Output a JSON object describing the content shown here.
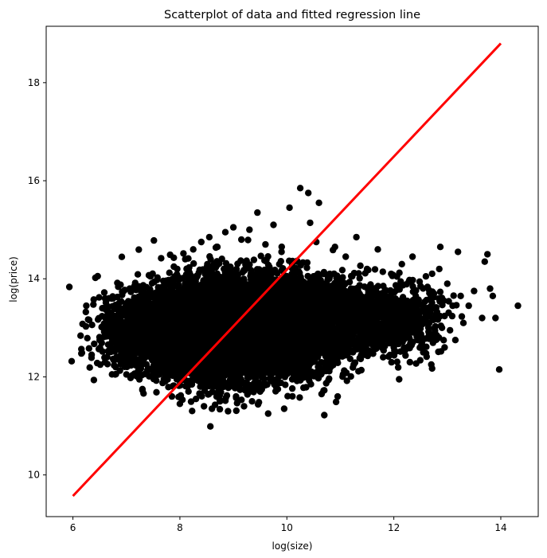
{
  "chart_data": {
    "type": "scatter",
    "title": "Scatterplot of data and fitted regression line",
    "xlabel": "log(size)",
    "ylabel": "log(price)",
    "xlim": [
      5.5,
      14.7
    ],
    "ylim": [
      9.15,
      19.15
    ],
    "grid": false,
    "legend": "none",
    "x_ticks": [
      6,
      8,
      10,
      12,
      14
    ],
    "y_ticks": [
      10,
      12,
      14,
      16,
      18
    ],
    "x_tick_labels": [
      "6",
      "8",
      "10",
      "12",
      "14"
    ],
    "y_tick_labels": [
      "10",
      "12",
      "14",
      "16",
      "18"
    ],
    "colors": {
      "points": "#000000",
      "regression_line": "#ff0000"
    },
    "series": [
      {
        "kind": "points",
        "points": [
          [
            6.25,
            13.45
          ],
          [
            6.35,
            12.45
          ],
          [
            6.42,
            14.02
          ],
          [
            6.5,
            12.75
          ],
          [
            6.55,
            13.4
          ],
          [
            6.6,
            12.3
          ],
          [
            6.65,
            13.15
          ],
          [
            6.7,
            12.9
          ],
          [
            6.75,
            13.6
          ],
          [
            6.8,
            12.2
          ],
          [
            6.85,
            13.35
          ],
          [
            6.9,
            12.65
          ],
          [
            6.95,
            13.75
          ],
          [
            7.0,
            12.05
          ],
          [
            7.05,
            13.2
          ],
          [
            7.1,
            12.55
          ],
          [
            7.15,
            13.85
          ],
          [
            7.2,
            12.35
          ],
          [
            7.25,
            13.05
          ],
          [
            7.3,
            11.75
          ],
          [
            7.35,
            13.65
          ],
          [
            7.4,
            12.85
          ],
          [
            7.45,
            14.05
          ],
          [
            7.5,
            12.15
          ],
          [
            7.6,
            13.4
          ],
          [
            7.65,
            14.42
          ],
          [
            7.7,
            11.95
          ],
          [
            7.75,
            12.7
          ],
          [
            7.8,
            13.95
          ],
          [
            7.85,
            11.6
          ],
          [
            7.9,
            13.25
          ],
          [
            7.95,
            14.2
          ],
          [
            8.0,
            11.45
          ],
          [
            8.05,
            12.5
          ],
          [
            8.1,
            14.4
          ],
          [
            8.15,
            11.85
          ],
          [
            8.2,
            13.55
          ],
          [
            8.25,
            14.6
          ],
          [
            8.3,
            11.55
          ],
          [
            8.35,
            12.95
          ],
          [
            8.4,
            14.75
          ],
          [
            8.45,
            11.4
          ],
          [
            8.5,
            13.15
          ],
          [
            8.55,
            14.85
          ],
          [
            8.6,
            11.35
          ],
          [
            8.65,
            12.4
          ],
          [
            8.7,
            14.65
          ],
          [
            8.75,
            11.5
          ],
          [
            8.8,
            13.85
          ],
          [
            8.85,
            14.95
          ],
          [
            8.9,
            11.3
          ],
          [
            8.95,
            12.2
          ],
          [
            9.0,
            15.05
          ],
          [
            9.05,
            11.6
          ],
          [
            9.1,
            13.45
          ],
          [
            9.15,
            14.8
          ],
          [
            9.2,
            11.4
          ],
          [
            9.25,
            12.75
          ],
          [
            9.3,
            15.0
          ],
          [
            9.35,
            11.5
          ],
          [
            9.4,
            13.95
          ],
          [
            9.45,
            15.35
          ],
          [
            9.5,
            11.7
          ],
          [
            9.55,
            12.55
          ],
          [
            9.6,
            14.7
          ],
          [
            9.65,
            11.25
          ],
          [
            9.7,
            13.3
          ],
          [
            9.75,
            15.1
          ],
          [
            9.8,
            11.8
          ],
          [
            9.85,
            12.9
          ],
          [
            9.9,
            14.55
          ],
          [
            9.95,
            11.35
          ],
          [
            10.0,
            13.75
          ],
          [
            10.05,
            15.45
          ],
          [
            10.1,
            11.95
          ],
          [
            10.15,
            12.45
          ],
          [
            10.2,
            14.35
          ],
          [
            10.25,
            15.85
          ],
          [
            10.3,
            12.1
          ],
          [
            10.35,
            13.6
          ],
          [
            10.4,
            15.75
          ],
          [
            10.45,
            11.85
          ],
          [
            10.5,
            12.85
          ],
          [
            10.55,
            14.75
          ],
          [
            10.6,
            15.55
          ],
          [
            10.65,
            11.65
          ],
          [
            10.7,
            11.22
          ],
          [
            10.75,
            13.25
          ],
          [
            10.8,
            14.05
          ],
          [
            10.85,
            12.35
          ],
          [
            10.9,
            14.65
          ],
          [
            10.95,
            11.6
          ],
          [
            11.0,
            13.45
          ],
          [
            11.05,
            12.05
          ],
          [
            11.1,
            14.45
          ],
          [
            11.15,
            12.55
          ],
          [
            11.2,
            13.8
          ],
          [
            11.25,
            12.25
          ],
          [
            11.3,
            14.85
          ],
          [
            11.35,
            12.7
          ],
          [
            11.4,
            13.15
          ],
          [
            11.45,
            12.45
          ],
          [
            11.5,
            14.2
          ],
          [
            11.55,
            12.9
          ],
          [
            11.6,
            13.5
          ],
          [
            11.65,
            12.65
          ],
          [
            11.7,
            14.6
          ],
          [
            11.75,
            13.05
          ],
          [
            11.8,
            12.4
          ],
          [
            11.85,
            13.65
          ],
          [
            11.9,
            12.85
          ],
          [
            11.95,
            14.1
          ],
          [
            12.0,
            12.6
          ],
          [
            12.05,
            13.3
          ],
          [
            12.1,
            11.95
          ],
          [
            12.15,
            14.3
          ],
          [
            12.2,
            12.95
          ],
          [
            12.25,
            13.55
          ],
          [
            12.3,
            12.3
          ],
          [
            12.35,
            14.45
          ],
          [
            12.4,
            13.1
          ],
          [
            12.45,
            12.75
          ],
          [
            12.5,
            13.85
          ],
          [
            12.55,
            12.5
          ],
          [
            12.6,
            14.05
          ],
          [
            12.65,
            13.25
          ],
          [
            12.7,
            12.25
          ],
          [
            12.75,
            13.7
          ],
          [
            12.8,
            12.85
          ],
          [
            12.85,
            14.2
          ],
          [
            12.9,
            13.0
          ],
          [
            12.95,
            12.6
          ],
          [
            13.0,
            13.9
          ],
          [
            13.05,
            12.95
          ],
          [
            13.1,
            13.45
          ],
          [
            13.15,
            12.75
          ],
          [
            13.2,
            14.55
          ],
          [
            13.25,
            13.65
          ],
          [
            13.3,
            13.1
          ],
          [
            13.4,
            13.45
          ],
          [
            13.5,
            13.75
          ],
          [
            13.65,
            13.2
          ],
          [
            13.7,
            14.35
          ],
          [
            13.75,
            14.5
          ],
          [
            13.8,
            13.8
          ],
          [
            13.85,
            13.65
          ],
          [
            13.9,
            13.2
          ],
          [
            13.97,
            12.15
          ],
          [
            14.32,
            13.45
          ]
        ],
        "dense_clusters": [
          {
            "cx": 9.0,
            "cy": 13.0,
            "sx": 0.75,
            "sy": 0.5,
            "n": 6000
          },
          {
            "cx": 8.3,
            "cy": 12.95,
            "sx": 0.7,
            "sy": 0.42,
            "n": 2000
          },
          {
            "cx": 7.4,
            "cy": 12.9,
            "sx": 0.45,
            "sy": 0.36,
            "n": 600
          },
          {
            "cx": 10.2,
            "cy": 13.1,
            "sx": 0.55,
            "sy": 0.45,
            "n": 1500
          },
          {
            "cx": 11.3,
            "cy": 13.2,
            "sx": 0.55,
            "sy": 0.38,
            "n": 700
          },
          {
            "cx": 12.2,
            "cy": 13.15,
            "sx": 0.35,
            "sy": 0.35,
            "n": 350
          }
        ]
      },
      {
        "kind": "line",
        "points": [
          [
            6.0,
            9.57
          ],
          [
            14.0,
            18.8
          ]
        ]
      }
    ]
  }
}
